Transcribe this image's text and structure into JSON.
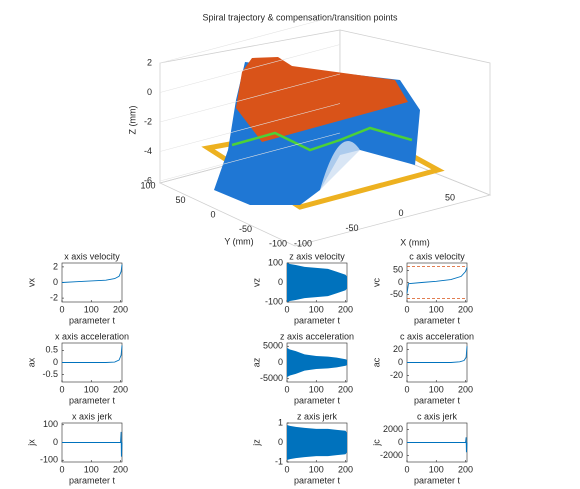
{
  "chart_data": [
    {
      "type": "surface3d",
      "title": "Spiral trajectory & compensation/transition points",
      "xlabel": "X (mm)",
      "ylabel": "Y (mm)",
      "zlabel": "Z (mm)",
      "xlim": [
        -100,
        100
      ],
      "ylim": [
        -100,
        100
      ],
      "zlim": [
        -6,
        2
      ],
      "xticks": [
        -100,
        -50,
        0,
        50
      ],
      "yticks": [
        100,
        50,
        0,
        -50,
        -100
      ],
      "zticks": [
        2,
        0,
        -2,
        -4,
        -6
      ]
    },
    {
      "type": "line",
      "title": "x axis velocity",
      "xlabel": "parameter t",
      "ylabel": "vx",
      "color": "#0072bd",
      "xlim": [
        0,
        205
      ],
      "ylim": [
        -2.5,
        2.5
      ],
      "xticks": [
        0,
        100,
        200
      ],
      "yticks": [
        2,
        0,
        -2
      ],
      "x": [
        0,
        50,
        100,
        150,
        180,
        195,
        202,
        205
      ],
      "values": [
        0,
        0.1,
        0.2,
        0.3,
        0.5,
        0.8,
        1.4,
        2.3
      ]
    },
    {
      "type": "band",
      "title": "z axis velocity",
      "xlabel": "parameter t",
      "ylabel": "vz",
      "color": "#0072bd",
      "xlim": [
        0,
        205
      ],
      "ylim": [
        -100,
        100
      ],
      "xticks": [
        0,
        100,
        200
      ],
      "yticks": [
        100,
        0,
        -100
      ],
      "x": [
        0,
        10,
        30,
        60,
        100,
        140,
        170,
        200,
        205
      ],
      "upper": [
        100,
        95,
        90,
        80,
        75,
        70,
        55,
        40,
        30
      ],
      "lower": [
        -100,
        -95,
        -90,
        -80,
        -75,
        -70,
        -55,
        -40,
        -30
      ]
    },
    {
      "type": "line",
      "title": "c axis velocity",
      "xlabel": "parameter t",
      "ylabel": "vc",
      "color": "#0072bd",
      "xlim": [
        0,
        205
      ],
      "ylim": [
        -80,
        80
      ],
      "xticks": [
        0,
        100,
        200
      ],
      "yticks": [
        50,
        0,
        -50
      ],
      "x": [
        0,
        5,
        50,
        100,
        150,
        185,
        200,
        205
      ],
      "values": [
        -45,
        -5,
        0,
        5,
        12,
        25,
        45,
        62
      ],
      "hlines": [
        65,
        -65
      ],
      "hline_color": "#d95319"
    },
    {
      "type": "line",
      "title": "x axis acceleration",
      "xlabel": "parameter t",
      "ylabel": "ax",
      "color": "#0072bd",
      "xlim": [
        0,
        205
      ],
      "ylim": [
        -0.8,
        0.8
      ],
      "xticks": [
        0,
        100,
        200
      ],
      "yticks": [
        0.5,
        0,
        -0.5
      ],
      "x": [
        0,
        50,
        100,
        150,
        180,
        195,
        202,
        205
      ],
      "values": [
        0,
        0,
        0,
        0,
        0.02,
        0.1,
        0.3,
        0.7
      ]
    },
    {
      "type": "band",
      "title": "z axis acceleration",
      "xlabel": "parameter t",
      "ylabel": "az",
      "color": "#0072bd",
      "xlim": [
        0,
        205
      ],
      "ylim": [
        -6000,
        6000
      ],
      "xticks": [
        0,
        100,
        200
      ],
      "yticks": [
        5000,
        0,
        -5000
      ],
      "x": [
        0,
        10,
        30,
        60,
        100,
        140,
        170,
        200,
        205
      ],
      "upper": [
        4500,
        4000,
        3500,
        2500,
        2000,
        1800,
        1500,
        1000,
        800
      ],
      "lower": [
        -4500,
        -4000,
        -3500,
        -2500,
        -2000,
        -1800,
        -1500,
        -1000,
        -800
      ]
    },
    {
      "type": "line",
      "title": "c axis acceleration",
      "xlabel": "parameter t",
      "ylabel": "ac",
      "color": "#0072bd",
      "xlim": [
        0,
        205
      ],
      "ylim": [
        -30,
        30
      ],
      "xticks": [
        0,
        100,
        200
      ],
      "yticks": [
        20,
        0,
        -20
      ],
      "x": [
        0,
        50,
        100,
        150,
        180,
        195,
        202,
        205
      ],
      "values": [
        0,
        0,
        0,
        0,
        1,
        3,
        8,
        25
      ]
    },
    {
      "type": "line",
      "title": "x axis jerk",
      "xlabel": "parameter t",
      "ylabel": "jx",
      "color": "#0072bd",
      "xlim": [
        0,
        205
      ],
      "ylim": [
        -110,
        110
      ],
      "xticks": [
        0,
        100,
        200
      ],
      "yticks": [
        100,
        0,
        -100
      ],
      "x": [
        0,
        200,
        202,
        203,
        205
      ],
      "values": [
        0,
        0,
        60,
        -80,
        0
      ]
    },
    {
      "type": "band",
      "title": "z axis jerk",
      "xlabel": "parameter t",
      "ylabel": "jz",
      "color": "#0072bd",
      "xlim": [
        0,
        205
      ],
      "ylim": [
        -1,
        1
      ],
      "xticks": [
        0,
        100,
        200
      ],
      "yticks": [
        1,
        0,
        -1
      ],
      "x": [
        0,
        10,
        30,
        60,
        100,
        140,
        170,
        200,
        205
      ],
      "upper": [
        0.9,
        0.85,
        0.8,
        0.75,
        0.7,
        0.7,
        0.65,
        0.6,
        0.5
      ],
      "lower": [
        -0.9,
        -0.85,
        -0.8,
        -0.75,
        -0.7,
        -0.7,
        -0.65,
        -0.6,
        -0.5
      ]
    },
    {
      "type": "line",
      "title": "c axis jerk",
      "xlabel": "parameter t",
      "ylabel": "jc",
      "color": "#0072bd",
      "xlim": [
        0,
        205
      ],
      "ylim": [
        -3000,
        3000
      ],
      "xticks": [
        0,
        100,
        200
      ],
      "yticks": [
        2000,
        0,
        -2000
      ],
      "x": [
        0,
        200,
        202,
        203,
        205
      ],
      "values": [
        0,
        0,
        800,
        -1500,
        0
      ]
    }
  ]
}
